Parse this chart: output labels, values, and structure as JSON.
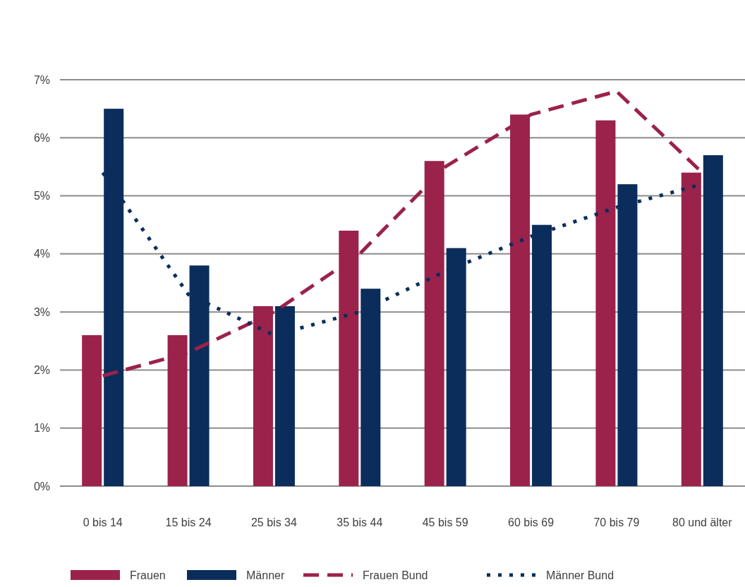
{
  "chart_data": {
    "type": "bar",
    "categories": [
      "0 bis 14",
      "15 bis 24",
      "25 bis 34",
      "35 bis 44",
      "45 bis 59",
      "60 bis 69",
      "70 bis 79",
      "80 und älter"
    ],
    "series": [
      {
        "name": "Frauen",
        "color": "#9b224b",
        "values": [
          2.6,
          2.6,
          3.1,
          4.4,
          5.6,
          6.4,
          6.3,
          5.4
        ]
      },
      {
        "name": "Männer",
        "color": "#0b2d5c",
        "values": [
          6.5,
          3.8,
          3.1,
          3.4,
          4.1,
          4.5,
          5.2,
          5.7
        ]
      },
      {
        "name": "Frauen Bund",
        "type": "line",
        "line_style": "dashed",
        "color": "#9b224b",
        "values": [
          1.9,
          2.3,
          3.0,
          4.0,
          5.5,
          6.4,
          6.8,
          5.4
        ]
      },
      {
        "name": "Männer Bund",
        "type": "line",
        "line_style": "dotted",
        "color": "#0b2d5c",
        "values": [
          5.4,
          3.3,
          2.6,
          3.0,
          3.7,
          4.3,
          4.8,
          5.2
        ]
      }
    ],
    "ylim": [
      0,
      7
    ],
    "yticks": [
      {
        "value": 0,
        "label": "0%"
      },
      {
        "value": 1,
        "label": "1%"
      },
      {
        "value": 2,
        "label": "2%"
      },
      {
        "value": 3,
        "label": "3%"
      },
      {
        "value": 4,
        "label": "4%"
      },
      {
        "value": 5,
        "label": "5%"
      },
      {
        "value": 6,
        "label": "6%"
      },
      {
        "value": 7,
        "label": "7%"
      }
    ],
    "grid": "y",
    "legend": "bottom"
  }
}
